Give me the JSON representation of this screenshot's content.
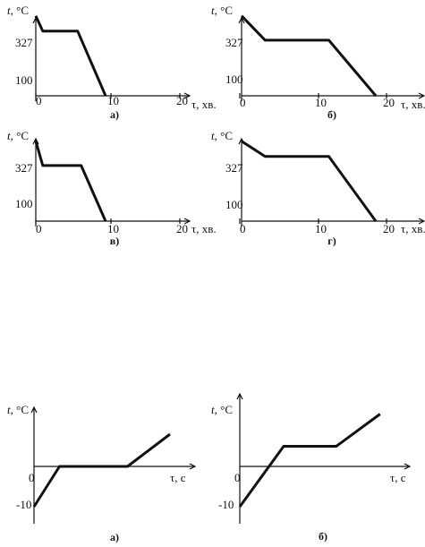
{
  "chart_data": [
    {
      "type": "line",
      "caption": "а)",
      "ylabel": "t, °C",
      "xlabel": "τ, хв.",
      "x_ticks": [
        "0",
        "10",
        "20"
      ],
      "y_ticks": [
        "327",
        "100"
      ],
      "series": [
        {
          "x": [
            0,
            1,
            6,
            10
          ],
          "y": [
            470,
            380,
            380,
            0
          ]
        }
      ]
    },
    {
      "type": "line",
      "caption": "б)",
      "ylabel": "t, °C",
      "xlabel": "τ, хв.",
      "x_ticks": [
        "0",
        "10",
        "20"
      ],
      "y_ticks": [
        "327",
        "100"
      ],
      "series": [
        {
          "x": [
            0,
            3.5,
            13,
            20
          ],
          "y": [
            470,
            327,
            327,
            0
          ]
        }
      ]
    },
    {
      "type": "line",
      "caption": "в)",
      "ylabel": "t, °C",
      "xlabel": "τ, хв.",
      "x_ticks": [
        "0",
        "10",
        "20"
      ],
      "y_ticks": [
        "327",
        "100"
      ],
      "series": [
        {
          "x": [
            0,
            1,
            6.5,
            10
          ],
          "y": [
            470,
            327,
            327,
            0
          ]
        }
      ]
    },
    {
      "type": "line",
      "caption": "г)",
      "ylabel": "t, °C",
      "xlabel": "τ, хв.",
      "x_ticks": [
        "0",
        "10",
        "20"
      ],
      "y_ticks": [
        "327",
        "100"
      ],
      "series": [
        {
          "x": [
            0,
            3.5,
            13,
            20
          ],
          "y": [
            470,
            380,
            380,
            0
          ]
        }
      ]
    },
    {
      "type": "line",
      "caption": "а)",
      "ylabel": "t, °C",
      "xlabel": "τ, с",
      "x_ticks": [
        "0"
      ],
      "y_ticks": [
        "-10"
      ],
      "series": [
        {
          "x": [
            0,
            3,
            11,
            16
          ],
          "y": [
            -10,
            0,
            0,
            8
          ]
        }
      ]
    },
    {
      "type": "line",
      "caption": "б)",
      "ylabel": "t, °C",
      "xlabel": "τ, с",
      "x_ticks": [
        "0"
      ],
      "y_ticks": [
        "-10"
      ],
      "series": [
        {
          "x": [
            0,
            5,
            11,
            16
          ],
          "y": [
            -10,
            5,
            5,
            13
          ]
        }
      ]
    }
  ]
}
